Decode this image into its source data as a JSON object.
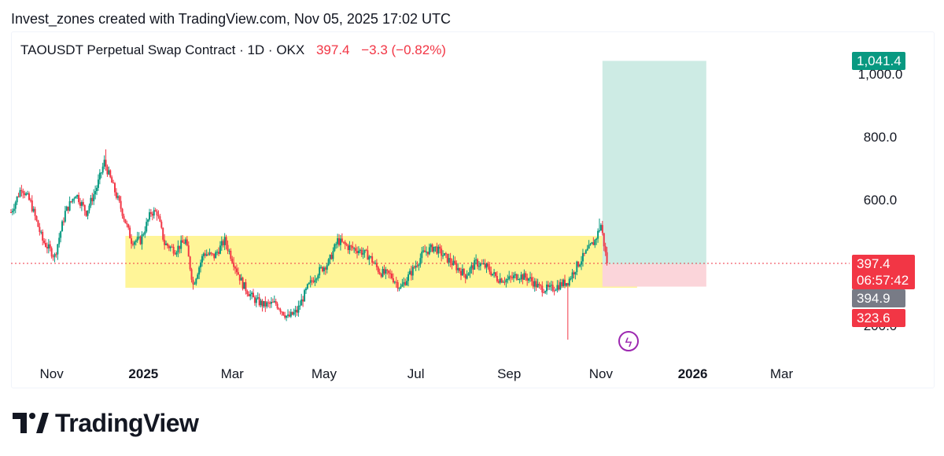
{
  "attribution": "Invest_zones created with TradingView.com, Nov 05, 2025 17:02 UTC",
  "legend": {
    "symbol": "TAOUSDT Perpetual Swap Contract · 1D · OKX",
    "last_price": "397.4",
    "change": "−3.3 (−0.82%)"
  },
  "price_badges": {
    "target": "1,041.4",
    "last": "397.4",
    "countdown": "06:57:42",
    "entry": "394.9",
    "stop": "323.6"
  },
  "colors": {
    "up": "#089981",
    "down": "#f23645",
    "zone": "#fff176",
    "profit_zone": "#cdebe4",
    "loss_zone": "#fbd5da",
    "lightning": "#9c27b0"
  },
  "icons": {
    "event": "lightning-icon",
    "logo": "tradingview-logo-icon"
  },
  "brand": {
    "wordmark": "TradingView"
  },
  "chart_data": {
    "type": "candlestick",
    "timeframe": "1D",
    "y_axis": {
      "ticks": [
        "1,000.0",
        "800.0",
        "600.0",
        "200.0"
      ],
      "tick_values": [
        1000,
        800,
        600,
        200
      ],
      "range": [
        140,
        1090
      ]
    },
    "x_axis": {
      "ticks": [
        {
          "label": "Nov",
          "date": "2024-11-01",
          "year": false
        },
        {
          "label": "2025",
          "date": "2025-01-01",
          "year": true
        },
        {
          "label": "Mar",
          "date": "2025-03-01",
          "year": false
        },
        {
          "label": "May",
          "date": "2025-05-01",
          "year": false
        },
        {
          "label": "Jul",
          "date": "2025-07-01",
          "year": false
        },
        {
          "label": "Sep",
          "date": "2025-09-01",
          "year": false
        },
        {
          "label": "Nov",
          "date": "2025-11-01",
          "year": false
        },
        {
          "label": "2026",
          "date": "2026-01-01",
          "year": true
        },
        {
          "label": "Mar",
          "date": "2026-03-01",
          "year": false
        }
      ]
    },
    "last_price": 397.4,
    "support_resistance_zone": {
      "from": "2024-12-20",
      "to": "2025-11-25",
      "low": 320,
      "high": 485
    },
    "long_position": {
      "from": "2025-11-02",
      "to": "2026-01-10",
      "entry": 394.9,
      "target": 1041.4,
      "stop": 323.6
    },
    "price_path": [
      [
        "2024-10-05",
        560
      ],
      [
        "2024-10-12",
        640
      ],
      [
        "2024-10-18",
        590
      ],
      [
        "2024-10-26",
        470
      ],
      [
        "2024-11-03",
        420
      ],
      [
        "2024-11-10",
        560
      ],
      [
        "2024-11-17",
        620
      ],
      [
        "2024-11-24",
        560
      ],
      [
        "2024-12-01",
        640
      ],
      [
        "2024-12-06",
        720
      ],
      [
        "2024-12-12",
        640
      ],
      [
        "2024-12-18",
        560
      ],
      [
        "2024-12-24",
        470
      ],
      [
        "2024-12-30",
        470
      ],
      [
        "2025-01-06",
        560
      ],
      [
        "2025-01-10",
        560
      ],
      [
        "2025-01-15",
        460
      ],
      [
        "2025-01-22",
        440
      ],
      [
        "2025-01-29",
        470
      ],
      [
        "2025-02-03",
        330
      ],
      [
        "2025-02-10",
        430
      ],
      [
        "2025-02-17",
        420
      ],
      [
        "2025-02-24",
        470
      ],
      [
        "2025-03-02",
        400
      ],
      [
        "2025-03-08",
        330
      ],
      [
        "2025-03-15",
        285
      ],
      [
        "2025-03-22",
        265
      ],
      [
        "2025-03-30",
        270
      ],
      [
        "2025-04-07",
        225
      ],
      [
        "2025-04-13",
        245
      ],
      [
        "2025-04-20",
        320
      ],
      [
        "2025-04-27",
        370
      ],
      [
        "2025-05-04",
        400
      ],
      [
        "2025-05-10",
        470
      ],
      [
        "2025-05-17",
        450
      ],
      [
        "2025-05-24",
        440
      ],
      [
        "2025-05-31",
        420
      ],
      [
        "2025-06-07",
        370
      ],
      [
        "2025-06-14",
        360
      ],
      [
        "2025-06-21",
        320
      ],
      [
        "2025-06-28",
        370
      ],
      [
        "2025-07-06",
        430
      ],
      [
        "2025-07-13",
        450
      ],
      [
        "2025-07-20",
        420
      ],
      [
        "2025-07-27",
        390
      ],
      [
        "2025-08-03",
        360
      ],
      [
        "2025-08-10",
        400
      ],
      [
        "2025-08-17",
        385
      ],
      [
        "2025-08-24",
        350
      ],
      [
        "2025-08-31",
        345
      ],
      [
        "2025-09-07",
        360
      ],
      [
        "2025-09-14",
        350
      ],
      [
        "2025-09-21",
        320
      ],
      [
        "2025-09-28",
        315
      ],
      [
        "2025-10-05",
        330
      ],
      [
        "2025-10-10",
        340
      ],
      [
        "2025-10-16",
        390
      ],
      [
        "2025-10-22",
        430
      ],
      [
        "2025-10-28",
        470
      ],
      [
        "2025-11-01",
        520
      ],
      [
        "2025-11-05",
        397
      ]
    ],
    "extreme_wicks": [
      {
        "date": "2025-10-10",
        "low": 155
      },
      {
        "date": "2025-10-31",
        "high": 540
      },
      {
        "date": "2024-12-07",
        "high": 760
      }
    ]
  }
}
